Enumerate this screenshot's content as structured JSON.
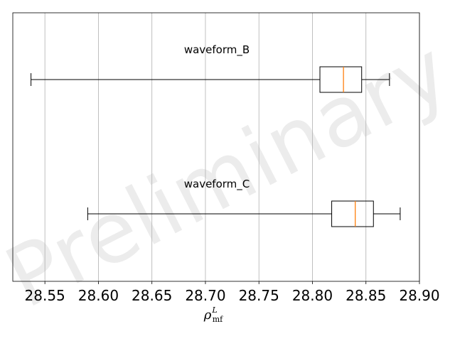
{
  "chart_data": {
    "type": "boxplot",
    "orientation": "horizontal",
    "xlim": [
      28.52,
      28.9
    ],
    "x_ticks": [
      28.55,
      28.6,
      28.65,
      28.7,
      28.75,
      28.8,
      28.85,
      28.9
    ],
    "x_tick_labels": [
      "28.55",
      "28.60",
      "28.65",
      "28.70",
      "28.75",
      "28.80",
      "28.85",
      "28.90"
    ],
    "xlabel": {
      "base": "ρ",
      "sup": "L",
      "sub": "mf"
    },
    "grid": "vertical",
    "watermark": "Preliminary",
    "colors": {
      "median": "#ff7f0e",
      "box": "#000000",
      "grid": "#b0b0b0"
    },
    "series": [
      {
        "name": "waveform_B",
        "whisker_low": 28.537,
        "q1": 28.807,
        "median": 28.829,
        "q3": 28.846,
        "whisker_high": 28.872
      },
      {
        "name": "waveform_C",
        "whisker_low": 28.59,
        "q1": 28.818,
        "median": 28.84,
        "q3": 28.857,
        "whisker_high": 28.882
      }
    ]
  }
}
